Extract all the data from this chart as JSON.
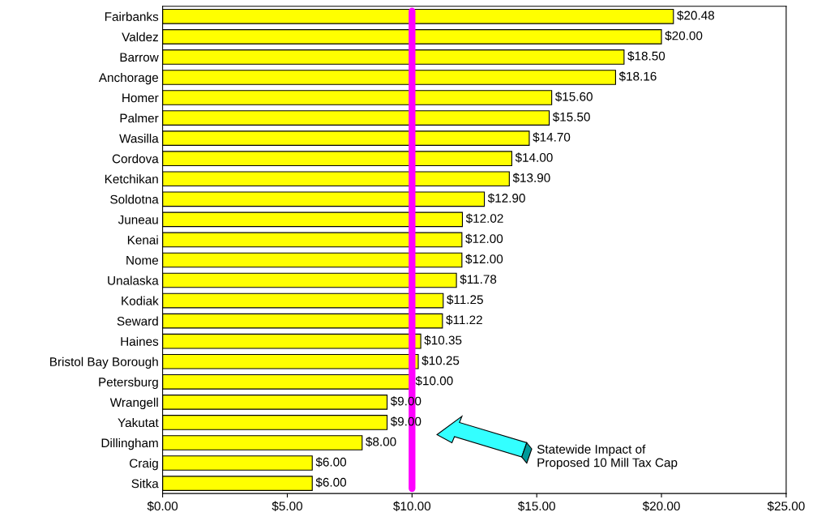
{
  "chart_data": {
    "type": "bar",
    "orientation": "horizontal",
    "categories": [
      "Fairbanks",
      "Valdez",
      "Barrow",
      "Anchorage",
      "Homer",
      "Palmer",
      "Wasilla",
      "Cordova",
      "Ketchikan",
      "Soldotna",
      "Juneau",
      "Kenai",
      "Nome",
      "Unalaska",
      "Kodiak",
      "Seward",
      "Haines",
      "Bristol Bay Borough",
      "Petersburg",
      "Wrangell",
      "Yakutat",
      "Dillingham",
      "Craig",
      "Sitka"
    ],
    "values": [
      20.48,
      20.0,
      18.5,
      18.16,
      15.6,
      15.5,
      14.7,
      14.0,
      13.9,
      12.9,
      12.02,
      12.0,
      12.0,
      11.78,
      11.25,
      11.22,
      10.35,
      10.25,
      10.0,
      9.0,
      9.0,
      8.0,
      6.0,
      6.0
    ],
    "value_labels": [
      "$20.48",
      "$20.00",
      "$18.50",
      "$18.16",
      "$15.60",
      "$15.50",
      "$14.70",
      "$14.00",
      "$13.90",
      "$12.90",
      "$12.02",
      "$12.00",
      "$12.00",
      "$11.78",
      "$11.25",
      "$11.22",
      "$10.35",
      "$10.25",
      "$10.00",
      "$9.00",
      "$9.00",
      "$8.00",
      "$6.00",
      "$6.00"
    ],
    "color": "#ffff00",
    "xlim": [
      0,
      25
    ],
    "xticks": [
      {
        "value": 0,
        "label": "$0.00"
      },
      {
        "value": 5,
        "label": "$5.00"
      },
      {
        "value": 10,
        "label": "$10.00"
      },
      {
        "value": 15,
        "label": "$15.00"
      },
      {
        "value": 20,
        "label": "$20.00"
      },
      {
        "value": 25,
        "label": "$25.00"
      }
    ],
    "ref_lines": [
      {
        "axis": "x",
        "value": 10,
        "color": "#ff00ff"
      }
    ],
    "annotations": [
      "Statewide Impact of\nProposed 10 Mill Tax Cap"
    ],
    "grid": false,
    "legend": false
  }
}
